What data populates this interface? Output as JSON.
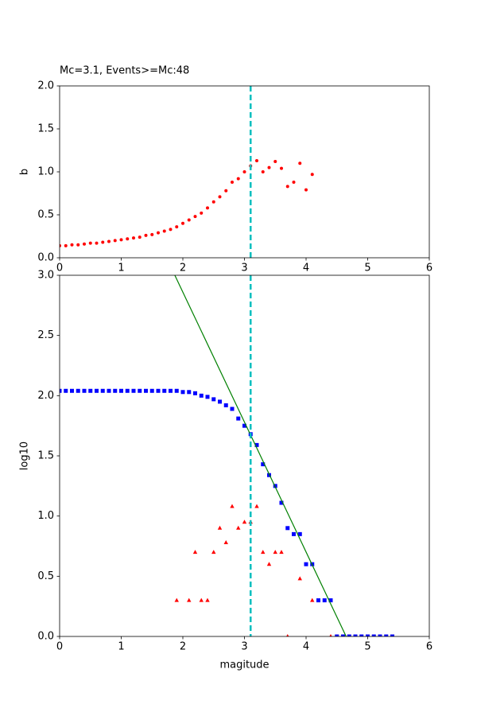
{
  "chart_data": [
    {
      "type": "scatter",
      "title": "Mc=3.1, Events>=Mc:48",
      "ylabel": "b",
      "xlim": [
        0,
        6
      ],
      "ylim": [
        0,
        2
      ],
      "xticks": [
        0,
        1,
        2,
        3,
        4,
        5,
        6
      ],
      "yticks": [
        {
          "value": 0,
          "label": "0.0"
        },
        0.5,
        {
          "value": 1,
          "label": "1.0"
        },
        1.5,
        {
          "value": 2,
          "label": "2.0"
        }
      ],
      "vline": 3.1,
      "vline_color": "#00bfbf",
      "series": [
        {
          "marker": "circle",
          "color": "#ff0000",
          "x": [
            0.0,
            0.1,
            0.2,
            0.3,
            0.4,
            0.5,
            0.6,
            0.7,
            0.8,
            0.9,
            1.0,
            1.1,
            1.2,
            1.3,
            1.4,
            1.5,
            1.6,
            1.7,
            1.8,
            1.9,
            2.0,
            2.1,
            2.2,
            2.3,
            2.4,
            2.5,
            2.6,
            2.7,
            2.8,
            2.9,
            3.0,
            3.1,
            3.2,
            3.3,
            3.4,
            3.5,
            3.6,
            3.7,
            3.8,
            3.9,
            4.0,
            4.1
          ],
          "values": [
            0.14,
            0.14,
            0.15,
            0.15,
            0.16,
            0.17,
            0.17,
            0.18,
            0.19,
            0.2,
            0.21,
            0.22,
            0.23,
            0.24,
            0.26,
            0.27,
            0.29,
            0.31,
            0.33,
            0.36,
            0.4,
            0.44,
            0.48,
            0.52,
            0.58,
            0.65,
            0.71,
            0.78,
            0.88,
            0.92,
            1.0,
            1.07,
            1.13,
            1.0,
            1.05,
            1.12,
            1.04,
            0.83,
            0.88,
            1.1,
            0.79,
            0.97
          ]
        }
      ]
    },
    {
      "type": "scatter",
      "xlabel": "magitude",
      "ylabel": "log10",
      "xlim": [
        0,
        6
      ],
      "ylim": [
        0,
        3
      ],
      "xticks": [
        0,
        1,
        2,
        3,
        4,
        5,
        6
      ],
      "yticks": [
        {
          "value": 0,
          "label": "0.0"
        },
        0.5,
        {
          "value": 1,
          "label": "1.0"
        },
        1.5,
        {
          "value": 2,
          "label": "2.0"
        },
        2.5,
        {
          "value": 3,
          "label": "3.0"
        }
      ],
      "vline": 3.1,
      "vline_color": "#00bfbf",
      "series": [
        {
          "marker": "square",
          "color": "#0000ff",
          "x": [
            0.0,
            0.1,
            0.2,
            0.3,
            0.4,
            0.5,
            0.6,
            0.7,
            0.8,
            0.9,
            1.0,
            1.1,
            1.2,
            1.3,
            1.4,
            1.5,
            1.6,
            1.7,
            1.8,
            1.9,
            2.0,
            2.1,
            2.2,
            2.3,
            2.4,
            2.5,
            2.6,
            2.7,
            2.8,
            2.9,
            3.0,
            3.1,
            3.2,
            3.3,
            3.4,
            3.5,
            3.6,
            3.7,
            3.8,
            3.9,
            4.0,
            4.1,
            4.2,
            4.3,
            4.4,
            4.5,
            4.6,
            4.7,
            4.8,
            4.9,
            5.0,
            5.1,
            5.2,
            5.3,
            5.4
          ],
          "values": [
            2.04,
            2.04,
            2.04,
            2.04,
            2.04,
            2.04,
            2.04,
            2.04,
            2.04,
            2.04,
            2.04,
            2.04,
            2.04,
            2.04,
            2.04,
            2.04,
            2.04,
            2.04,
            2.04,
            2.04,
            2.03,
            2.03,
            2.02,
            2.0,
            1.99,
            1.97,
            1.95,
            1.92,
            1.89,
            1.81,
            1.75,
            1.68,
            1.59,
            1.43,
            1.34,
            1.25,
            1.11,
            0.9,
            0.85,
            0.85,
            0.6,
            0.6,
            0.3,
            0.3,
            0.3,
            0,
            0,
            0,
            0,
            0,
            0,
            0,
            0,
            0,
            0
          ]
        },
        {
          "marker": "triangle",
          "color": "#ff0000",
          "x": [
            1.9,
            2.1,
            2.2,
            2.3,
            2.4,
            2.5,
            2.6,
            2.7,
            2.8,
            2.9,
            3.0,
            3.1,
            3.2,
            3.3,
            3.4,
            3.5,
            3.6,
            3.7,
            3.9,
            4.1,
            4.4
          ],
          "values": [
            0.3,
            0.3,
            0.7,
            0.3,
            0.3,
            0.7,
            0.9,
            0.78,
            1.08,
            0.9,
            0.95,
            0.95,
            1.08,
            0.7,
            0.6,
            0.7,
            0.7,
            0,
            0.48,
            0.3,
            0
          ]
        },
        {
          "marker": "line",
          "color": "#008000",
          "x": [
            1.87,
            4.65
          ],
          "values": [
            3,
            0
          ]
        }
      ]
    }
  ]
}
